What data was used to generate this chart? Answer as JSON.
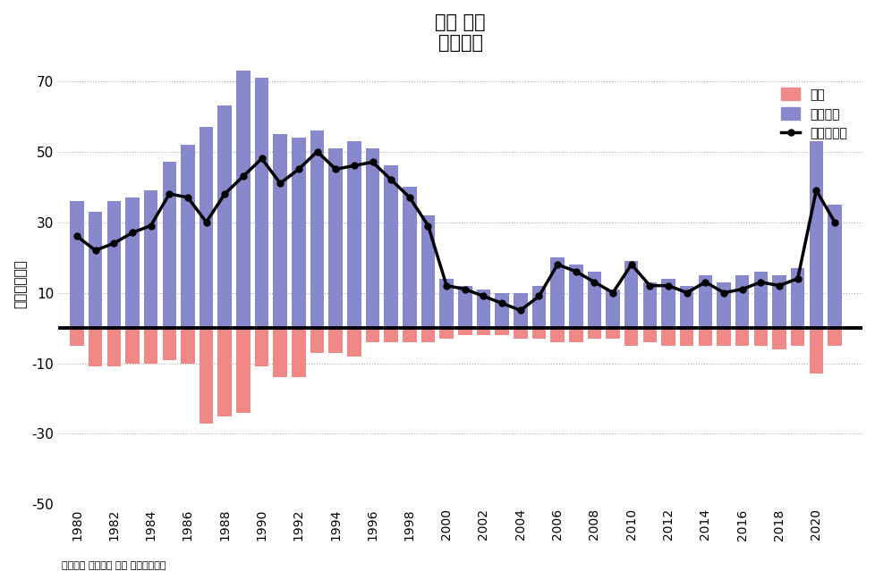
{
  "years": [
    1980,
    1981,
    1982,
    1983,
    1984,
    1985,
    1986,
    1987,
    1988,
    1989,
    1990,
    1991,
    1992,
    1993,
    1994,
    1995,
    1996,
    1997,
    1998,
    1999,
    2000,
    2001,
    2002,
    2003,
    2004,
    2005,
    2006,
    2007,
    2008,
    2009,
    2010,
    2011,
    2012,
    2013,
    2014,
    2015,
    2016,
    2017,
    2018,
    2019,
    2020,
    2021
  ],
  "financial_assets": [
    36,
    33,
    36,
    37,
    39,
    47,
    52,
    57,
    63,
    73,
    71,
    55,
    54,
    56,
    51,
    53,
    51,
    46,
    40,
    32,
    14,
    12,
    11,
    10,
    10,
    12,
    20,
    18,
    16,
    11,
    19,
    13,
    14,
    12,
    15,
    13,
    15,
    16,
    15,
    17,
    53,
    35
  ],
  "liabilities": [
    -5,
    -11,
    -11,
    -10,
    -10,
    -9,
    -10,
    -27,
    -25,
    -24,
    -11,
    -14,
    -14,
    -7,
    -7,
    -8,
    -4,
    -4,
    -4,
    -4,
    -3,
    -2,
    -2,
    -2,
    -3,
    -3,
    -4,
    -4,
    -3,
    -3,
    -5,
    -4,
    -5,
    -5,
    -5,
    -5,
    -5,
    -5,
    -6,
    -5,
    -13,
    -5
  ],
  "net_lending": [
    26,
    22,
    24,
    27,
    29,
    38,
    37,
    30,
    38,
    43,
    48,
    41,
    45,
    50,
    45,
    46,
    47,
    42,
    37,
    29,
    12,
    11,
    9,
    7,
    5,
    9,
    18,
    16,
    13,
    10,
    18,
    12,
    12,
    10,
    13,
    10,
    11,
    13,
    12,
    14,
    39,
    30
  ],
  "bar_color_assets": "#8888cc",
  "bar_color_liabilities": "#f08888",
  "line_color": "#000000",
  "hline_color": "#000000",
  "title_line1": "日本 家計",
  "title_line2": "金融取引",
  "ylabel": "金額［兆円］",
  "footnote": "日本銀行 資金循環 年度 フローの数値",
  "legend_liabilities": "負債",
  "legend_assets": "金融資産",
  "legend_net": "資金過不足",
  "ylim": [
    -50,
    75
  ],
  "yticks": [
    -50,
    -30,
    -10,
    10,
    30,
    50,
    70
  ],
  "background_color": "#ffffff",
  "grid_color": "#aaaaaa"
}
